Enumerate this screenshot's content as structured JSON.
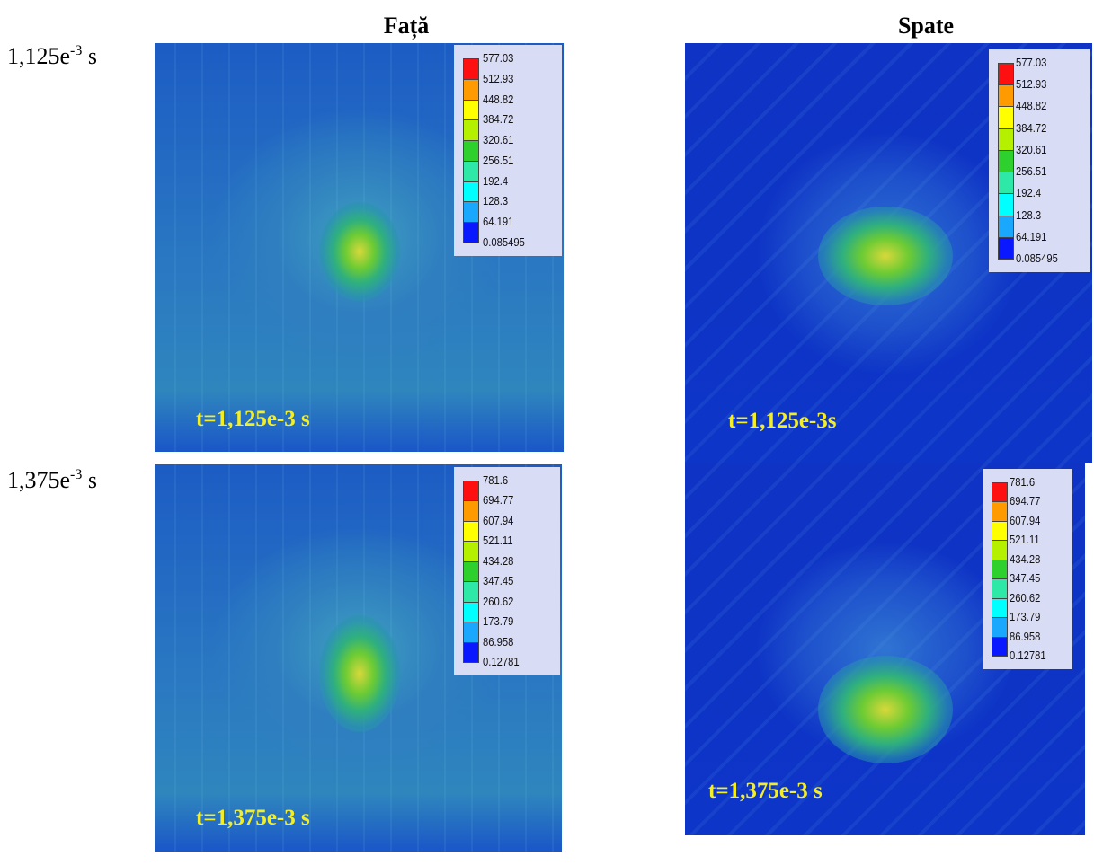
{
  "columns": [
    "Față",
    "Spate"
  ],
  "colorbar_colors": [
    "#ff1010",
    "#ff9a00",
    "#ffff00",
    "#b4f000",
    "#2ed02e",
    "#2ee8a8",
    "#00ffff",
    "#1aa8ff",
    "#0a18ff"
  ],
  "rows": [
    {
      "label": {
        "base": "1,125e",
        "exponent": "-3",
        "unit": "s"
      },
      "panels": [
        {
          "legend": [
            "577.03",
            "512.93",
            "448.82",
            "384.72",
            "320.61",
            "256.51",
            "192.4",
            "128.3",
            "64.191",
            "0.085495"
          ],
          "time_label": "t=1,125e-3 s"
        },
        {
          "legend": [
            "577.03",
            "512.93",
            "448.82",
            "384.72",
            "320.61",
            "256.51",
            "192.4",
            "128.3",
            "64.191",
            "0.085495"
          ],
          "time_label": "t=1,125e-3s"
        }
      ]
    },
    {
      "label": {
        "base": "1,375e",
        "exponent": "-3",
        "unit": "s"
      },
      "panels": [
        {
          "legend": [
            "781.6",
            "694.77",
            "607.94",
            "521.11",
            "434.28",
            "347.45",
            "260.62",
            "173.79",
            "86.958",
            "0.12781"
          ],
          "time_label": "t=1,375e-3 s"
        },
        {
          "legend": [
            "781.6",
            "694.77",
            "607.94",
            "521.11",
            "434.28",
            "347.45",
            "260.62",
            "173.79",
            "86.958",
            "0.12781"
          ],
          "time_label": "t=1,375e-3 s"
        }
      ]
    }
  ]
}
